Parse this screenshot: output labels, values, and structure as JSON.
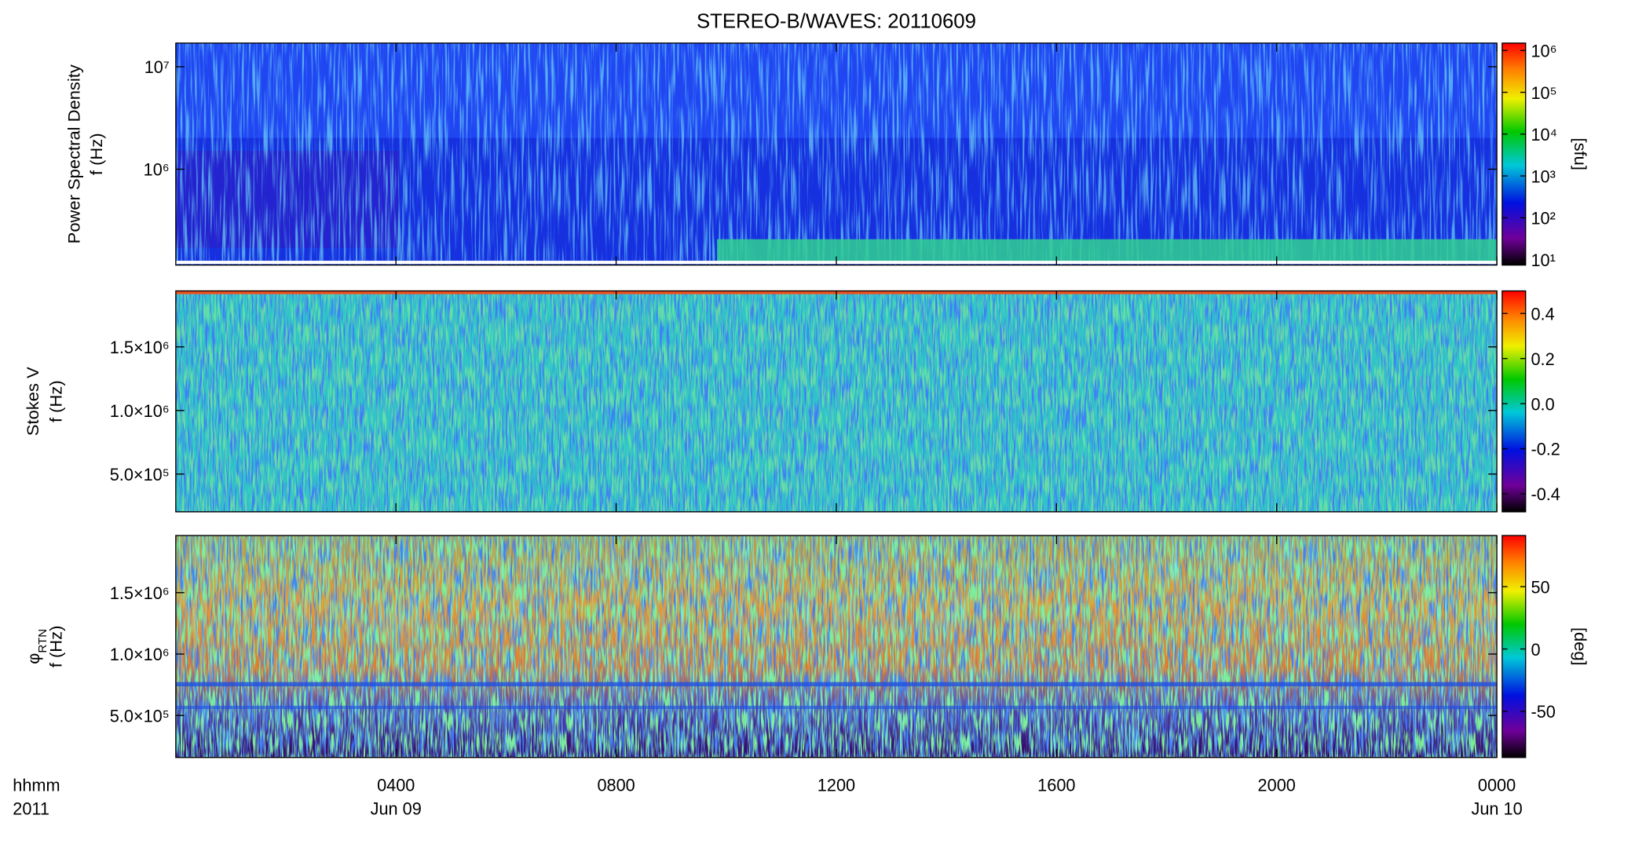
{
  "title": "STEREO-B/WAVES: 20110609",
  "x_axis": {
    "xlim": [
      0,
      24
    ],
    "xticks": [
      {
        "value": 4,
        "label": "0400"
      },
      {
        "value": 8,
        "label": "0800"
      },
      {
        "value": 12,
        "label": "1200"
      },
      {
        "value": 16,
        "label": "1600"
      },
      {
        "value": 20,
        "label": "2000"
      },
      {
        "value": 24,
        "label": "0000"
      }
    ],
    "date_labels": [
      {
        "value": 4,
        "label": "Jun 09"
      },
      {
        "value": 24,
        "label": "Jun 10"
      }
    ],
    "corner_labels": [
      "hhmm",
      "2011"
    ]
  },
  "chart_data": [
    {
      "type": "spectrogram",
      "ylabel": [
        "Power Spectral Density",
        "f (Hz)"
      ],
      "yscale": "log",
      "ylim": [
        116000,
        17000000
      ],
      "yticks": [
        {
          "value": 1000000,
          "label": "10⁶"
        },
        {
          "value": 10000000,
          "label": "10⁷"
        }
      ],
      "colorbar": {
        "scale": "log",
        "clim": [
          7.4,
          1500000
        ],
        "ticks": [
          {
            "value": 10,
            "label": "10¹"
          },
          {
            "value": 100,
            "label": "10²"
          },
          {
            "value": 1000,
            "label": "10³"
          },
          {
            "value": 10000,
            "label": "10⁴"
          },
          {
            "value": 100000,
            "label": "10⁵"
          },
          {
            "value": 1000000,
            "label": "10⁶"
          }
        ],
        "label": "[sfu]"
      }
    },
    {
      "type": "spectrogram",
      "ylabel": [
        "Stokes V",
        "f (Hz)"
      ],
      "yscale": "linear",
      "ylim": [
        203000,
        1940000
      ],
      "yticks": [
        {
          "value": 500000,
          "label": "5.0×10⁵"
        },
        {
          "value": 1000000,
          "label": "1.0×10⁶"
        },
        {
          "value": 1500000,
          "label": "1.5×10⁶"
        }
      ],
      "colorbar": {
        "scale": "linear",
        "clim": [
          -0.48,
          0.5
        ],
        "ticks": [
          -0.4,
          -0.2,
          {
            "value": 0,
            "label": "0.0"
          },
          0.2,
          0.4
        ]
      }
    },
    {
      "type": "spectrogram",
      "ylabel": [
        "φ",
        "f (Hz)"
      ],
      "ylabel_subscript": "RTN",
      "yscale": "linear",
      "ylim": [
        158000,
        1965000
      ],
      "yticks": [
        {
          "value": 500000,
          "label": "5.0×10⁵"
        },
        {
          "value": 1000000,
          "label": "1.0×10⁶"
        },
        {
          "value": 1500000,
          "label": "1.5×10⁶"
        }
      ],
      "colorbar": {
        "scale": "linear",
        "clim": [
          -87,
          91
        ],
        "ticks": [
          -50,
          0,
          50
        ],
        "label": "[deg]"
      }
    }
  ]
}
